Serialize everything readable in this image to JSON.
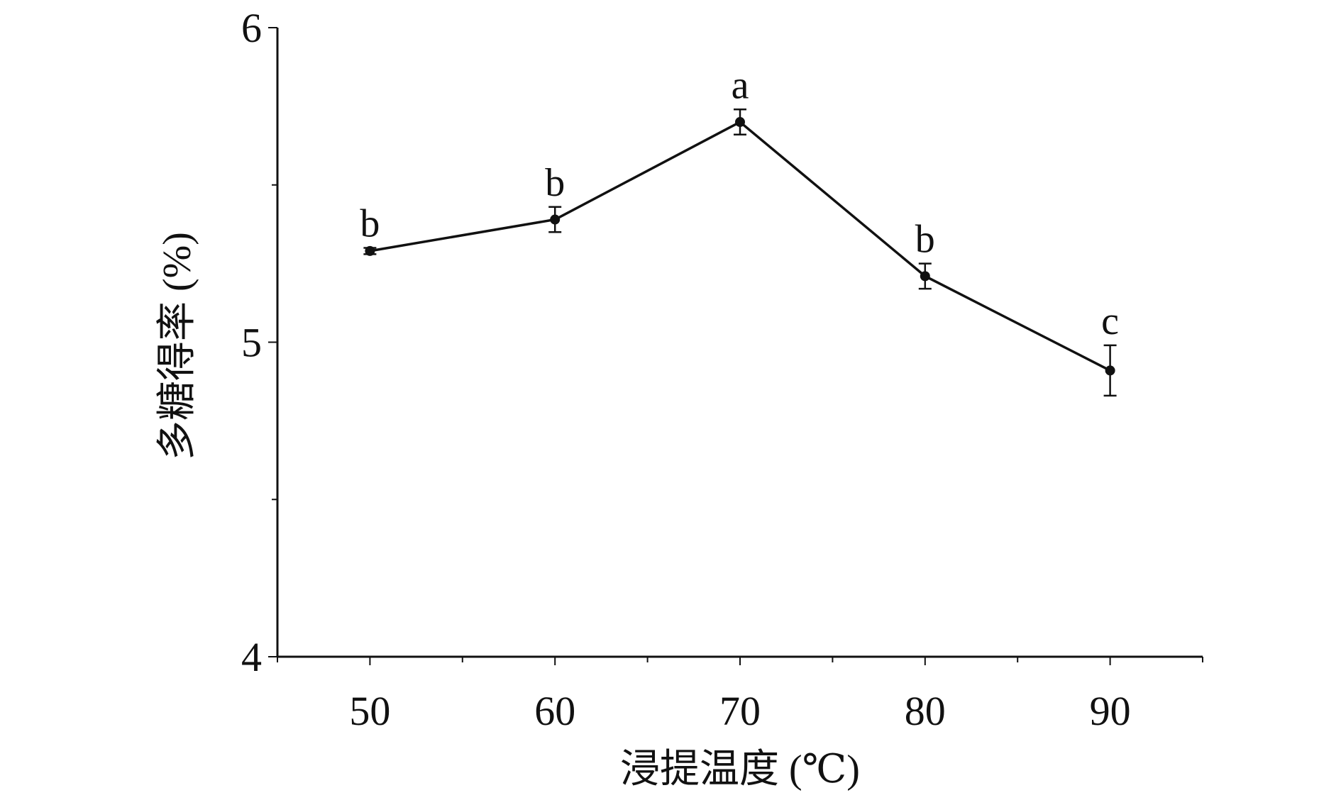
{
  "chart_data": {
    "type": "line",
    "xlabel": "浸提温度 (℃)",
    "ylabel": "多糖得率 (%)",
    "title": "",
    "x": [
      50,
      60,
      70,
      80,
      90
    ],
    "x_tick_labels": [
      "50",
      "60",
      "70",
      "80",
      "90"
    ],
    "xlim": [
      45,
      95
    ],
    "ylim": [
      4,
      6
    ],
    "y_ticks": [
      4,
      4.5,
      5,
      5.5,
      6
    ],
    "y_tick_labels": [
      "4",
      "",
      "5",
      "",
      "6"
    ],
    "grid": false,
    "series": [
      {
        "values": [
          5.29,
          5.39,
          5.7,
          5.21,
          4.91
        ],
        "errors": [
          0.01,
          0.04,
          0.04,
          0.04,
          0.08
        ],
        "significance": [
          "b",
          "b",
          "a",
          "b",
          "c"
        ],
        "color": "#111111"
      }
    ]
  }
}
